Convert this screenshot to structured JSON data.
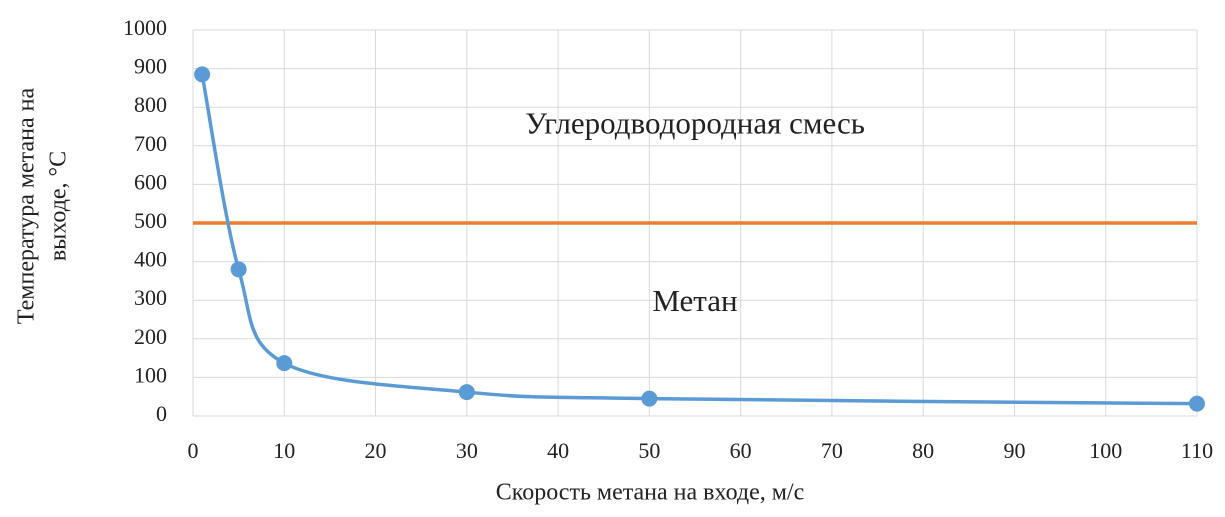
{
  "chart_data": {
    "type": "line",
    "xlabel": "Скорость метана на входе, м/с",
    "ylabel": [
      "Температура метана на",
      "выходе, °С"
    ],
    "annotations": [
      {
        "text": "Углеродводородная смесь",
        "x": 55,
        "y": 750
      },
      {
        "text": "Метан",
        "x": 55,
        "y": 290
      }
    ],
    "x": [
      1,
      5,
      10,
      30,
      50,
      110
    ],
    "series": [
      {
        "color": "#5b9bd5",
        "values": [
          885,
          380,
          137,
          62,
          45,
          32
        ],
        "smooth": true,
        "markers": true
      }
    ],
    "threshold": {
      "value": 500,
      "color": "#ed7d31"
    },
    "xlim": [
      0,
      110
    ],
    "xticks": [
      0,
      10,
      20,
      30,
      40,
      50,
      60,
      70,
      80,
      90,
      100,
      110
    ],
    "ylim": [
      0,
      1000
    ],
    "yticks": [
      0,
      100,
      200,
      300,
      400,
      500,
      600,
      700,
      800,
      900,
      1000
    ],
    "grid": true
  }
}
